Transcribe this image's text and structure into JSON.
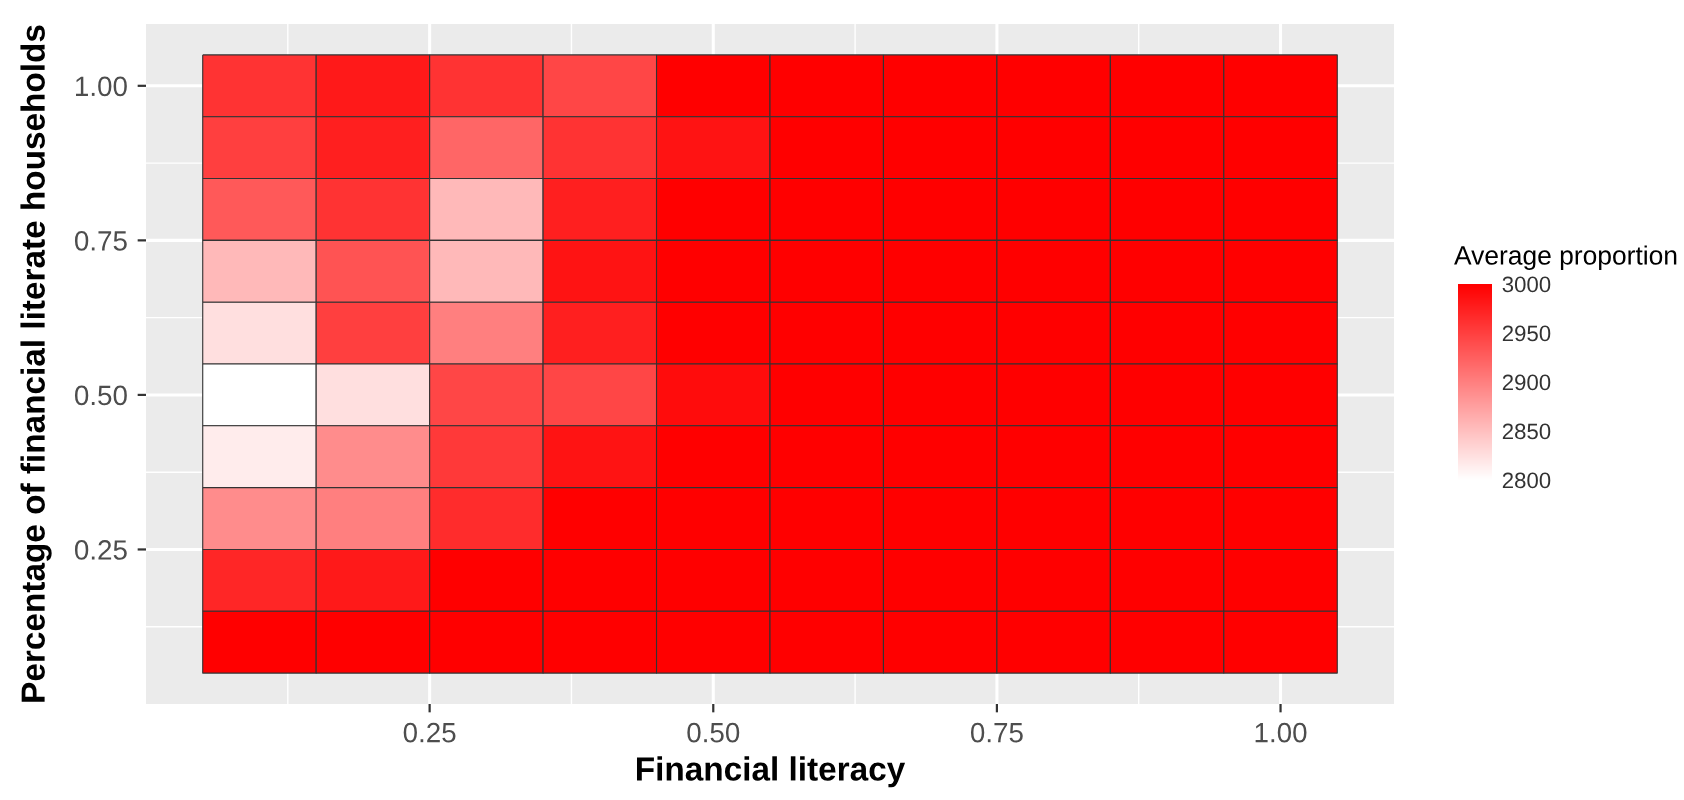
{
  "chart_data": {
    "type": "heatmap",
    "xlabel": "Financial literacy",
    "ylabel": "Percentage of financial literate households",
    "clabel": "Average proportion",
    "x": [
      0.1,
      0.2,
      0.3,
      0.4,
      0.5,
      0.6,
      0.7,
      0.8,
      0.9,
      1.0
    ],
    "y": [
      1.0,
      0.9,
      0.8,
      0.7,
      0.6,
      0.5,
      0.4,
      0.3,
      0.2,
      0.1
    ],
    "cells": [
      [
        2960,
        2980,
        2960,
        2945,
        3000,
        3000,
        3000,
        3000,
        3000,
        3000
      ],
      [
        2950,
        2975,
        2920,
        2960,
        2985,
        3000,
        3000,
        3000,
        3000,
        3000
      ],
      [
        2930,
        2960,
        2855,
        2975,
        3000,
        3000,
        3000,
        3000,
        3000,
        3000
      ],
      [
        2855,
        2935,
        2855,
        2985,
        3000,
        3000,
        3000,
        3000,
        3000,
        3000
      ],
      [
        2825,
        2950,
        2900,
        2975,
        3000,
        3000,
        3000,
        3000,
        3000,
        3000
      ],
      [
        2800,
        2825,
        2945,
        2945,
        2990,
        3000,
        3000,
        3000,
        3000,
        3000
      ],
      [
        2815,
        2890,
        2955,
        2985,
        3000,
        3000,
        3000,
        3000,
        3000,
        3000
      ],
      [
        2890,
        2900,
        2965,
        3000,
        3000,
        3000,
        3000,
        3000,
        3000,
        3000
      ],
      [
        2970,
        2980,
        3000,
        3000,
        3000,
        3000,
        3000,
        3000,
        3000,
        3000
      ],
      [
        3000,
        3000,
        3000,
        3000,
        3000,
        3000,
        3000,
        3000,
        3000,
        3000
      ]
    ],
    "clim": [
      2800,
      3000
    ],
    "cticks": [
      2800,
      2850,
      2900,
      2950,
      3000
    ],
    "xlim": [
      0.0,
      1.1
    ],
    "ylim": [
      0.0,
      1.1
    ],
    "xticks": [
      {
        "value": 0.25,
        "label": "0.25"
      },
      {
        "value": 0.5,
        "label": "0.50"
      },
      {
        "value": 0.75,
        "label": "0.75"
      },
      {
        "value": 1.0,
        "label": "1.00"
      }
    ],
    "yticks": [
      {
        "value": 0.25,
        "label": "0.25"
      },
      {
        "value": 0.5,
        "label": "0.50"
      },
      {
        "value": 0.75,
        "label": "0.75"
      },
      {
        "value": 1.0,
        "label": "1.00"
      }
    ],
    "grid": true
  }
}
